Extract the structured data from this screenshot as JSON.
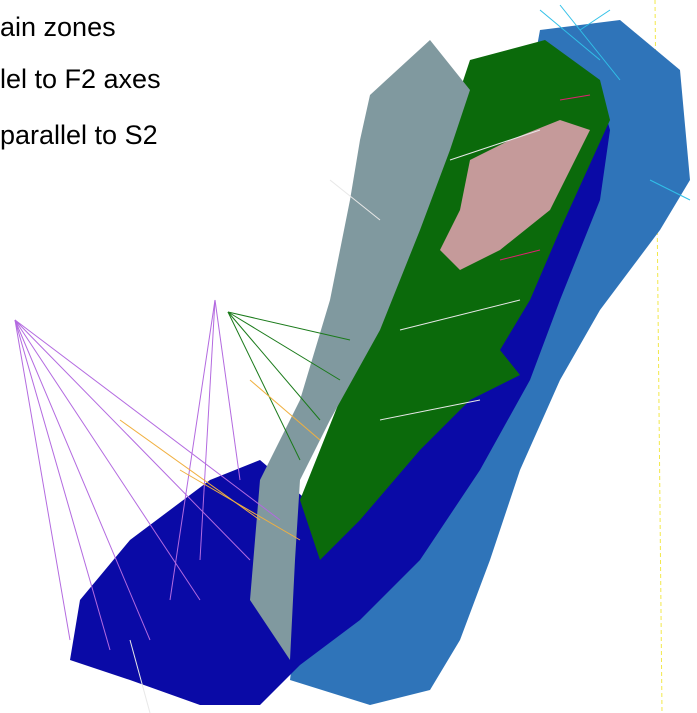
{
  "legend": {
    "lines": [
      "ain zones",
      "lel to F2 axes",
      "parallel to S2"
    ]
  }
}
